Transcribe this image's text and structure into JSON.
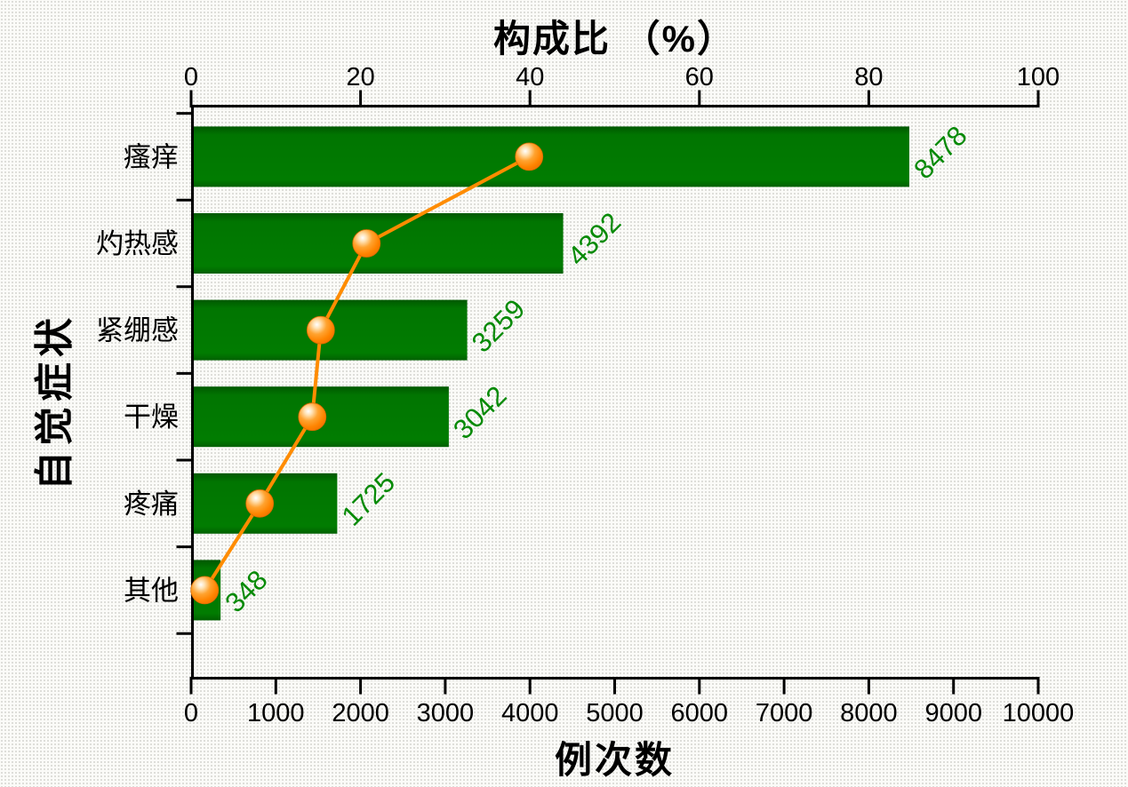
{
  "chart_data": {
    "type": "bar",
    "subtype": "horizontal-bars-with-percentage-line",
    "categories": [
      "瘙痒",
      "灼热感",
      "紧绷感",
      "干燥",
      "疼痛",
      "其他"
    ],
    "series": [
      {
        "name": "例次数",
        "type": "bar",
        "axis": "bottom",
        "values": [
          8478,
          4392,
          3259,
          3042,
          1725,
          348
        ],
        "data_labels": [
          "8478",
          "4392",
          "3259",
          "3042",
          "1725",
          "348"
        ]
      },
      {
        "name": "构成比",
        "type": "line",
        "axis": "top",
        "values": [
          39.9,
          20.7,
          15.3,
          14.3,
          8.1,
          1.6
        ]
      }
    ],
    "top_axis": {
      "label": "构成比 （%）",
      "range": [
        0,
        100
      ],
      "ticks": [
        0,
        20,
        40,
        60,
        80,
        100
      ]
    },
    "bottom_axis": {
      "label": "例次数",
      "range": [
        0,
        10000
      ],
      "ticks": [
        0,
        1000,
        2000,
        3000,
        4000,
        5000,
        6000,
        7000,
        8000,
        9000,
        10000
      ]
    },
    "left_axis": {
      "label": "自觉症状"
    },
    "legend_position": "none",
    "grid": false,
    "colors": {
      "bar_green": "#017501",
      "bar_green_edge": "#005800",
      "value_label_green": "#068A06",
      "line_orange": "#FF8C00",
      "marker_core_orange": "#FF8400",
      "marker_edge_orange": "#D96A00",
      "axis_black": "#000000",
      "background": "#FBFBF8"
    }
  }
}
